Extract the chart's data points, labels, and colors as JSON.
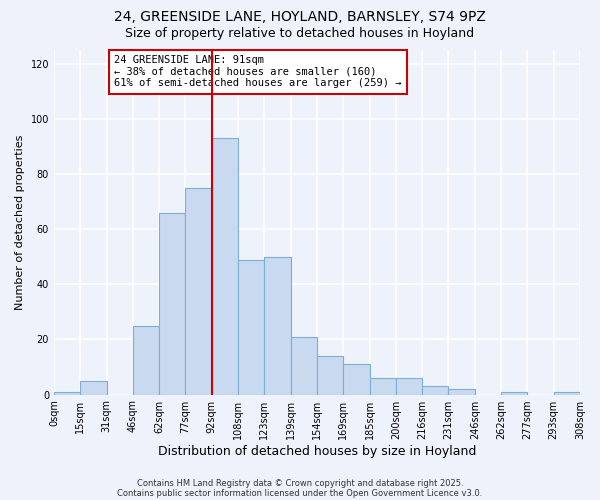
{
  "title1": "24, GREENSIDE LANE, HOYLAND, BARNSLEY, S74 9PZ",
  "title2": "Size of property relative to detached houses in Hoyland",
  "xlabel": "Distribution of detached houses by size in Hoyland",
  "ylabel": "Number of detached properties",
  "footer1": "Contains HM Land Registry data © Crown copyright and database right 2025.",
  "footer2": "Contains public sector information licensed under the Open Government Licence v3.0.",
  "bin_labels": [
    "0sqm",
    "15sqm",
    "31sqm",
    "46sqm",
    "62sqm",
    "77sqm",
    "92sqm",
    "108sqm",
    "123sqm",
    "139sqm",
    "154sqm",
    "169sqm",
    "185sqm",
    "200sqm",
    "216sqm",
    "231sqm",
    "246sqm",
    "262sqm",
    "277sqm",
    "293sqm",
    "308sqm"
  ],
  "bar_values": [
    1,
    5,
    0,
    25,
    66,
    75,
    93,
    49,
    50,
    21,
    14,
    11,
    6,
    6,
    3,
    2,
    0,
    1,
    0,
    1
  ],
  "bar_color": "#c9d9f0",
  "bar_edge_color": "#7bafd4",
  "vline_color": "#cc0000",
  "annotation_line1": "24 GREENSIDE LANE: 91sqm",
  "annotation_line2": "← 38% of detached houses are smaller (160)",
  "annotation_line3": "61% of semi-detached houses are larger (259) →",
  "ylim": [
    0,
    125
  ],
  "yticks": [
    0,
    20,
    40,
    60,
    80,
    100,
    120
  ],
  "background_color": "#eef2fb",
  "grid_color": "#ffffff",
  "annotation_fontsize": 7.5,
  "title_fontsize1": 10,
  "title_fontsize2": 9,
  "ylabel_fontsize": 8,
  "xlabel_fontsize": 9,
  "tick_fontsize": 7,
  "footer_fontsize": 6
}
